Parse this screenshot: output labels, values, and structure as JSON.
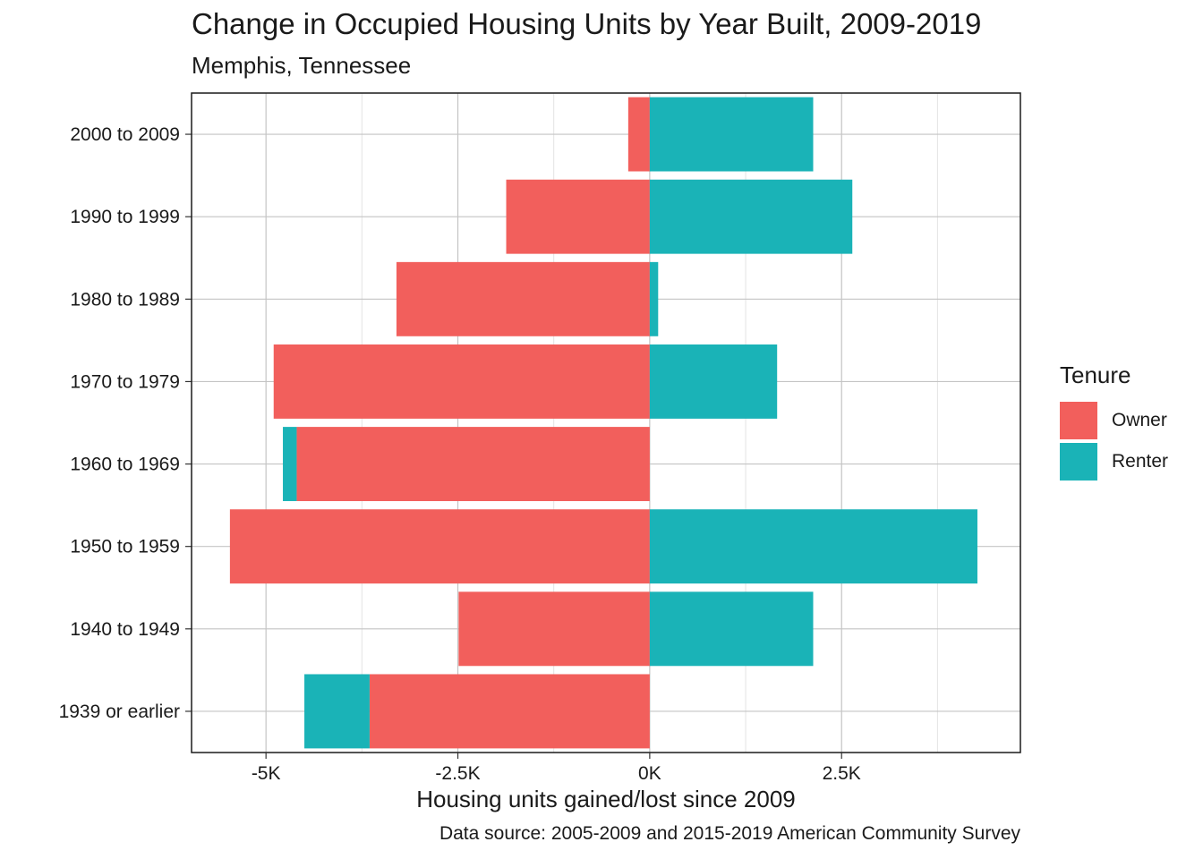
{
  "chart_data": {
    "type": "bar",
    "orientation": "horizontal",
    "stacked": true,
    "title": "Change in Occupied Housing Units by Year Built, 2009-2019",
    "subtitle": "Memphis, Tennessee",
    "xlabel": "Housing units gained/lost since 2009",
    "ylabel": "",
    "caption": "Data source: 2005-2009 and 2015-2019 American Community Survey",
    "categories": [
      "2000 to 2009",
      "1990 to 1999",
      "1980 to 1989",
      "1970 to 1979",
      "1960 to 1969",
      "1950 to 1959",
      "1940 to 1949",
      "1939 or earlier"
    ],
    "series": [
      {
        "name": "Owner",
        "color": "#F25F5C",
        "values": [
          -280,
          -1870,
          -3300,
          -4900,
          -4600,
          -5470,
          -2490,
          -3650
        ]
      },
      {
        "name": "Renter",
        "color": "#1AB3B7",
        "values": [
          2130,
          2640,
          110,
          1660,
          -180,
          4270,
          2130,
          -850
        ]
      }
    ],
    "xlim": [
      -5970,
      4830
    ],
    "xticks": [
      -5000,
      -2500,
      0,
      2500
    ],
    "xtick_labels": [
      "-5K",
      "-2.5K",
      "0K",
      "2.5K"
    ],
    "grid": true,
    "legend": {
      "title": "Tenure",
      "position": "right"
    }
  }
}
